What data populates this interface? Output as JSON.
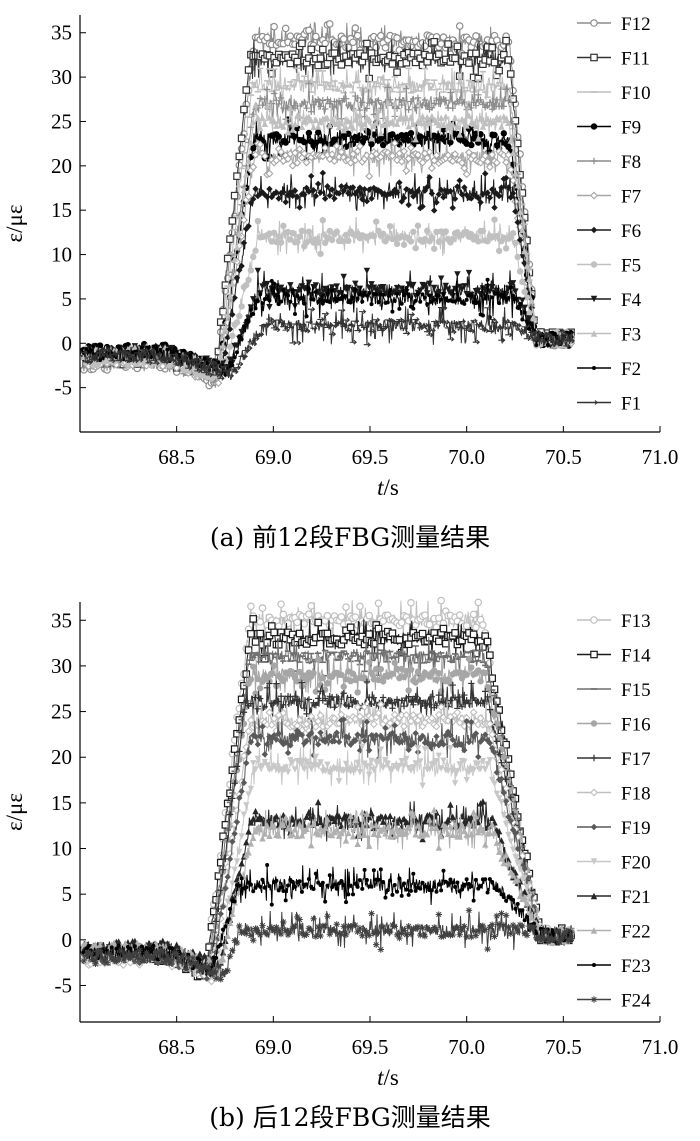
{
  "chart_data": [
    {
      "type": "line",
      "caption": "(a) 前12段FBG测量结果",
      "xlabel_italic": "t",
      "xlabel_unit": "/s",
      "ylabel": "ε/με",
      "xlim": [
        68.0,
        71.0
      ],
      "ylim": [
        -10,
        37
      ],
      "x_ticks": [
        68.5,
        69.0,
        69.5,
        70.0,
        70.5,
        71.0
      ],
      "x_tick_labels": [
        "68.5",
        "69.0",
        "69.5",
        "70.0",
        "70.5",
        "71.0"
      ],
      "y_ticks": [
        -5,
        0,
        5,
        10,
        15,
        20,
        25,
        30,
        35
      ],
      "y_tick_labels": [
        "-5",
        "0",
        "5",
        "10",
        "15",
        "20",
        "25",
        "30",
        "35"
      ],
      "legend_position": "right",
      "series": [
        {
          "name": "F12",
          "color": "#8c8c8c",
          "marker": "circle-open",
          "plateau": 34,
          "ramp_start": 68.7,
          "ramp_end": 68.9,
          "fall_start": 70.22,
          "fall_end": 70.36
        },
        {
          "name": "F11",
          "color": "#333333",
          "marker": "square-open",
          "plateau": 32,
          "ramp_start": 68.7,
          "ramp_end": 68.88,
          "fall_start": 70.22,
          "fall_end": 70.36
        },
        {
          "name": "F10",
          "color": "#bfbfbf",
          "marker": "dash",
          "plateau": 29,
          "ramp_start": 68.71,
          "ramp_end": 68.89,
          "fall_start": 70.22,
          "fall_end": 70.36
        },
        {
          "name": "F9",
          "color": "#000000",
          "marker": "circle-filled",
          "plateau": 23,
          "ramp_start": 68.72,
          "ramp_end": 68.9,
          "fall_start": 70.22,
          "fall_end": 70.36
        },
        {
          "name": "F8",
          "color": "#8c8c8c",
          "marker": "plus",
          "plateau": 27,
          "ramp_start": 68.72,
          "ramp_end": 68.9,
          "fall_start": 70.22,
          "fall_end": 70.36
        },
        {
          "name": "F7",
          "color": "#a6a6a6",
          "marker": "diamond",
          "plateau": 21,
          "ramp_start": 68.72,
          "ramp_end": 68.9,
          "fall_start": 70.22,
          "fall_end": 70.36
        },
        {
          "name": "F6",
          "color": "#1a1a1a",
          "marker": "diamond-filled",
          "plateau": 17,
          "ramp_start": 68.73,
          "ramp_end": 68.9,
          "fall_start": 70.24,
          "fall_end": 70.36
        },
        {
          "name": "F5",
          "color": "#c0c0c0",
          "marker": "circle-filled",
          "plateau": 12,
          "ramp_start": 68.74,
          "ramp_end": 68.92,
          "fall_start": 70.24,
          "fall_end": 70.36
        },
        {
          "name": "F4",
          "color": "#1a1a1a",
          "marker": "triangle-down",
          "plateau": 6,
          "ramp_start": 68.76,
          "ramp_end": 68.92,
          "fall_start": 70.25,
          "fall_end": 70.36
        },
        {
          "name": "F3",
          "color": "#bfbfbf",
          "marker": "triangle",
          "plateau": 25,
          "ramp_start": 68.72,
          "ramp_end": 68.9,
          "fall_start": 70.22,
          "fall_end": 70.36
        },
        {
          "name": "F2",
          "color": "#000000",
          "marker": "dot",
          "plateau": 5,
          "ramp_start": 68.76,
          "ramp_end": 68.92,
          "fall_start": 70.25,
          "fall_end": 70.36
        },
        {
          "name": "F1",
          "color": "#333333",
          "marker": "arrow",
          "plateau": 2,
          "ramp_start": 68.78,
          "ramp_end": 68.95,
          "fall_start": 70.26,
          "fall_end": 70.36
        }
      ]
    },
    {
      "type": "line",
      "caption": "(b) 后12段FBG测量结果",
      "xlabel_italic": "t",
      "xlabel_unit": "/s",
      "ylabel": "ε/με",
      "xlim": [
        68.0,
        71.0
      ],
      "ylim": [
        -9,
        37
      ],
      "x_ticks": [
        68.5,
        69.0,
        69.5,
        70.0,
        70.5,
        71.0
      ],
      "x_tick_labels": [
        "68.5",
        "69.0",
        "69.5",
        "70.0",
        "70.5",
        "71.0"
      ],
      "y_ticks": [
        -5,
        0,
        5,
        10,
        15,
        20,
        25,
        30,
        35
      ],
      "y_tick_labels": [
        "-5",
        "0",
        "5",
        "10",
        "15",
        "20",
        "25",
        "30",
        "35"
      ],
      "legend_position": "right",
      "series": [
        {
          "name": "F13",
          "color": "#bfbfbf",
          "marker": "circle-open",
          "plateau": 35,
          "ramp_start": 68.65,
          "ramp_end": 68.88,
          "fall_start": 70.08,
          "fall_end": 70.36
        },
        {
          "name": "F14",
          "color": "#1a1a1a",
          "marker": "square-open",
          "plateau": 33,
          "ramp_start": 68.65,
          "ramp_end": 68.88,
          "fall_start": 70.1,
          "fall_end": 70.38
        },
        {
          "name": "F15",
          "color": "#6e6e6e",
          "marker": "dash",
          "plateau": 31,
          "ramp_start": 68.66,
          "ramp_end": 68.88,
          "fall_start": 70.1,
          "fall_end": 70.38
        },
        {
          "name": "F16",
          "color": "#a6a6a6",
          "marker": "circle-filled",
          "plateau": 29,
          "ramp_start": 68.67,
          "ramp_end": 68.88,
          "fall_start": 70.1,
          "fall_end": 70.38
        },
        {
          "name": "F17",
          "color": "#333333",
          "marker": "plus",
          "plateau": 26,
          "ramp_start": 68.67,
          "ramp_end": 68.86,
          "fall_start": 70.11,
          "fall_end": 70.38
        },
        {
          "name": "F18",
          "color": "#bfbfbf",
          "marker": "diamond",
          "plateau": 24,
          "ramp_start": 68.68,
          "ramp_end": 68.88,
          "fall_start": 70.11,
          "fall_end": 70.38
        },
        {
          "name": "F19",
          "color": "#595959",
          "marker": "diamond-filled",
          "plateau": 22,
          "ramp_start": 68.68,
          "ramp_end": 68.88,
          "fall_start": 70.12,
          "fall_end": 70.38
        },
        {
          "name": "F20",
          "color": "#c8c8c8",
          "marker": "triangle-down",
          "plateau": 19,
          "ramp_start": 68.7,
          "ramp_end": 68.9,
          "fall_start": 70.12,
          "fall_end": 70.38
        },
        {
          "name": "F21",
          "color": "#262626",
          "marker": "triangle",
          "plateau": 13,
          "ramp_start": 68.72,
          "ramp_end": 68.88,
          "fall_start": 70.13,
          "fall_end": 70.38
        },
        {
          "name": "F22",
          "color": "#b0b0b0",
          "marker": "triangle",
          "plateau": 12,
          "ramp_start": 68.72,
          "ramp_end": 68.9,
          "fall_start": 70.13,
          "fall_end": 70.38
        },
        {
          "name": "F23",
          "color": "#000000",
          "marker": "dot",
          "plateau": 6,
          "ramp_start": 68.68,
          "ramp_end": 68.82,
          "fall_start": 70.15,
          "fall_end": 70.38
        },
        {
          "name": "F24",
          "color": "#404040",
          "marker": "asterisk",
          "plateau": 1,
          "ramp_start": 68.75,
          "ramp_end": 68.82,
          "fall_start": 70.3,
          "fall_end": 70.38
        }
      ]
    }
  ]
}
